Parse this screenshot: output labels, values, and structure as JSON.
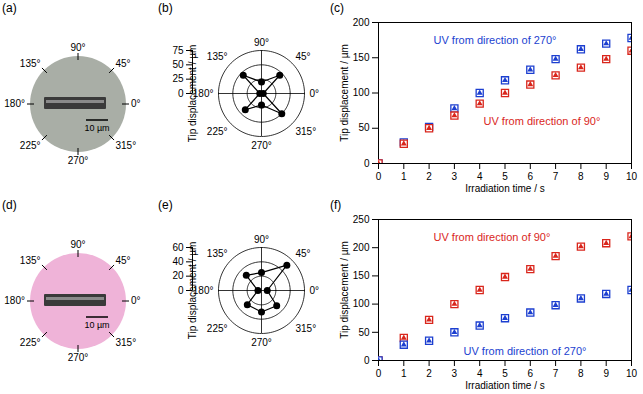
{
  "chart_data": [
    {
      "type": "image",
      "title": "(a)",
      "color": "#a9aea6",
      "angles": [
        0,
        45,
        90,
        135,
        180,
        225,
        270,
        315
      ],
      "angle_labels": [
        "0°",
        "45°",
        "90°",
        "135°",
        "180°",
        "225°",
        "270°",
        "315°"
      ],
      "scale_bar": "10 µm"
    },
    {
      "type": "polar",
      "title": "(b)",
      "r_label": "Tip displacement / µm",
      "angles": [
        0,
        45,
        90,
        135,
        180,
        225,
        270,
        315
      ],
      "angle_labels": [
        "0°",
        "45°",
        "90°",
        "135°",
        "180°",
        "225°",
        "270°",
        "315°"
      ],
      "values": [
        3,
        45,
        20,
        45,
        3,
        40,
        20,
        50
      ],
      "rlim": [
        0,
        75
      ],
      "rticks": [
        0,
        25,
        50,
        75
      ],
      "color": "#000000",
      "marker": "circle"
    },
    {
      "type": "scatter",
      "title": "(c)",
      "xlabel": "Irradiation time / s",
      "ylabel": "Tip displacement / µm",
      "x": [
        0,
        1,
        2,
        3,
        4,
        5,
        6,
        7,
        8,
        9,
        10
      ],
      "xlim": [
        0,
        10
      ],
      "xticks": [
        0,
        1,
        2,
        3,
        4,
        5,
        6,
        7,
        8,
        9,
        10
      ],
      "ylim": [
        0,
        200
      ],
      "yticks": [
        0,
        50,
        100,
        150,
        200
      ],
      "series": [
        {
          "name": "UV from direction of 270°",
          "color": "#1c3fd0",
          "marker": "square",
          "values": [
            0,
            30,
            52,
            78,
            100,
            118,
            133,
            148,
            162,
            170,
            178
          ]
        },
        {
          "name": "UV from direction of 90°",
          "color": "#d9261c",
          "marker": "square",
          "values": [
            0,
            28,
            50,
            68,
            85,
            100,
            112,
            125,
            136,
            148,
            160
          ]
        }
      ]
    },
    {
      "type": "image",
      "title": "(d)",
      "color": "#efb3d8",
      "angles": [
        0,
        45,
        90,
        135,
        180,
        225,
        270,
        315
      ],
      "angle_labels": [
        "0°",
        "45°",
        "90°",
        "135°",
        "180°",
        "225°",
        "270°",
        "315°"
      ],
      "scale_bar": "10 µm"
    },
    {
      "type": "polar",
      "title": "(e)",
      "r_label": "Tip displacement / µm",
      "angles": [
        0,
        45,
        90,
        135,
        180,
        225,
        270,
        315
      ],
      "angle_labels": [
        "0°",
        "45°",
        "90°",
        "135°",
        "180°",
        "225°",
        "270°",
        "315°"
      ],
      "values": [
        8,
        50,
        25,
        30,
        5,
        28,
        30,
        30
      ],
      "rlim": [
        0,
        60
      ],
      "rticks": [
        0,
        20,
        40,
        60
      ],
      "color": "#000000",
      "marker": "circle"
    },
    {
      "type": "scatter",
      "title": "(f)",
      "xlabel": "Irradiation time / s",
      "ylabel": "Tip displacement / µm",
      "x": [
        0,
        1,
        2,
        3,
        4,
        5,
        6,
        7,
        8,
        9,
        10
      ],
      "xlim": [
        0,
        10
      ],
      "xticks": [
        0,
        1,
        2,
        3,
        4,
        5,
        6,
        7,
        8,
        9,
        10
      ],
      "ylim": [
        0,
        250
      ],
      "yticks": [
        0,
        50,
        100,
        150,
        200,
        250
      ],
      "series": [
        {
          "name": "UV from direction of 90°",
          "color": "#d9261c",
          "marker": "square",
          "values": [
            0,
            40,
            72,
            100,
            125,
            148,
            162,
            185,
            202,
            208,
            220
          ]
        },
        {
          "name": "UV from direction of 270°",
          "color": "#1c3fd0",
          "marker": "square",
          "values": [
            0,
            28,
            35,
            50,
            62,
            75,
            85,
            98,
            110,
            118,
            125
          ]
        }
      ]
    }
  ]
}
